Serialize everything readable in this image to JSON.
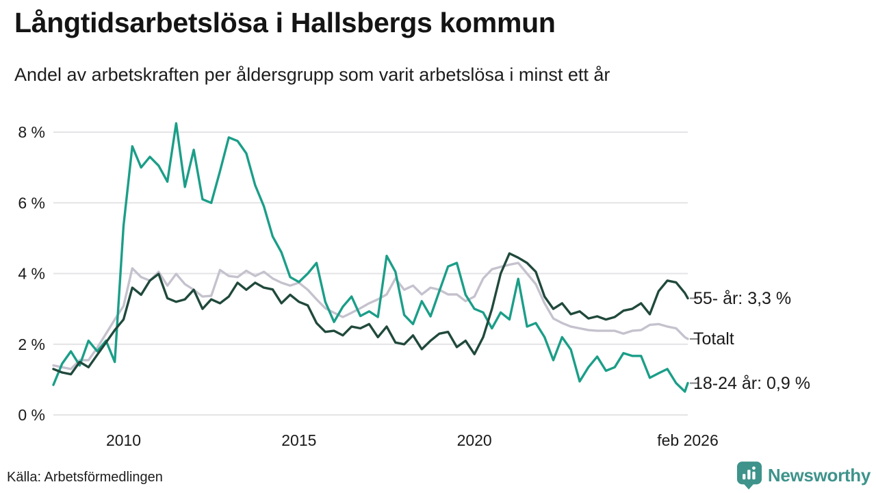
{
  "header": {
    "title": "Långtidsarbetslösa i Hallsbergs kommun",
    "subtitle": "Andel av arbetskraften per åldersgrupp som varit arbetslösa i minst ett år"
  },
  "footer": {
    "source": "Källa: Arbetsförmedlingen",
    "brand": "Newsworthy"
  },
  "colors": {
    "grid": "#e4e4e6",
    "tick_text": "#1a1a1a",
    "label_dash": "#8a8a8a",
    "logo_teal": "#3e938b"
  },
  "chart_data": {
    "type": "line",
    "title": "Långtidsarbetslösa i Hallsbergs kommun",
    "subtitle": "Andel av arbetskraften per åldersgrupp som varit arbetslösa i minst ett år",
    "source": "Källa: Arbetsförmedlingen",
    "grid": "horizontal",
    "xlim": [
      2008,
      2026.083
    ],
    "ylim": [
      0,
      8.6
    ],
    "x": {
      "start": 2008,
      "step": 0.25,
      "end": 2026.083,
      "unit": "year"
    },
    "x_ticks": [
      {
        "value": 2010,
        "label": "2010"
      },
      {
        "value": 2015,
        "label": "2015"
      },
      {
        "value": 2020,
        "label": "2020"
      },
      {
        "value": 2026.083,
        "label": "feb 2026"
      }
    ],
    "y_ticks": [
      {
        "value": 0,
        "label": "0 %"
      },
      {
        "value": 2,
        "label": "2 %"
      },
      {
        "value": 4,
        "label": "4 %"
      },
      {
        "value": 6,
        "label": "6 %"
      },
      {
        "value": 8,
        "label": "8 %"
      }
    ],
    "legend_position": "right-of-line-ends",
    "series": [
      {
        "name": "Totalt",
        "end_label": "Totalt",
        "color": "#c5c2ce",
        "values": [
          1.4,
          1.35,
          1.3,
          1.55,
          1.55,
          1.9,
          2.3,
          2.7,
          3.08,
          4.15,
          3.9,
          3.8,
          4.05,
          3.66,
          3.99,
          3.7,
          3.54,
          3.35,
          3.37,
          4.1,
          3.93,
          3.9,
          4.08,
          3.93,
          4.05,
          3.86,
          3.74,
          3.66,
          3.74,
          3.54,
          3.27,
          3.02,
          2.89,
          2.77,
          2.89,
          3.02,
          3.16,
          3.27,
          3.41,
          3.86,
          3.54,
          3.66,
          3.41,
          3.6,
          3.54,
          3.41,
          3.41,
          3.22,
          3.35,
          3.86,
          4.12,
          4.19,
          4.25,
          4.3,
          4.0,
          3.7,
          3.16,
          2.73,
          2.6,
          2.5,
          2.45,
          2.4,
          2.38,
          2.38,
          2.38,
          2.3,
          2.38,
          2.4,
          2.55,
          2.57,
          2.5,
          2.45,
          2.2,
          2.15
        ]
      },
      {
        "name": "18-24 år",
        "end_label": "18-24 år: 0,9 %",
        "end_value_text": "0,9 %",
        "color": "#1b9e88",
        "values": [
          0.85,
          1.45,
          1.8,
          1.4,
          2.1,
          1.8,
          2.1,
          1.5,
          5.35,
          7.6,
          7.0,
          7.3,
          7.05,
          6.6,
          8.25,
          6.45,
          7.5,
          6.1,
          6.0,
          6.9,
          7.85,
          7.75,
          7.4,
          6.5,
          5.9,
          5.05,
          4.6,
          3.9,
          3.76,
          4.0,
          4.3,
          3.2,
          2.63,
          3.06,
          3.35,
          2.8,
          2.93,
          2.77,
          4.5,
          4.05,
          2.83,
          2.57,
          3.22,
          2.79,
          3.5,
          4.2,
          4.3,
          3.4,
          3.0,
          2.9,
          2.45,
          2.9,
          2.7,
          3.85,
          2.5,
          2.6,
          2.2,
          1.55,
          2.2,
          1.85,
          0.95,
          1.35,
          1.65,
          1.25,
          1.35,
          1.75,
          1.67,
          1.67,
          1.05,
          1.18,
          1.3,
          0.9,
          0.66,
          0.9
        ]
      },
      {
        "name": "55- år",
        "end_label": "55- år: 3,3 %",
        "end_value_text": "3,3 %",
        "color": "#20493c",
        "values": [
          1.3,
          1.2,
          1.15,
          1.5,
          1.35,
          1.7,
          2.05,
          2.4,
          2.7,
          3.6,
          3.4,
          3.8,
          3.99,
          3.3,
          3.2,
          3.27,
          3.54,
          3.0,
          3.27,
          3.16,
          3.35,
          3.74,
          3.54,
          3.74,
          3.6,
          3.55,
          3.16,
          3.4,
          3.2,
          3.1,
          2.6,
          2.35,
          2.38,
          2.25,
          2.5,
          2.45,
          2.57,
          2.2,
          2.5,
          2.05,
          2.0,
          2.25,
          1.86,
          2.1,
          2.3,
          2.35,
          1.92,
          2.1,
          1.72,
          2.2,
          3.0,
          4.0,
          4.57,
          4.45,
          4.3,
          4.05,
          3.35,
          3.0,
          3.16,
          2.85,
          2.93,
          2.73,
          2.79,
          2.7,
          2.77,
          2.95,
          3.0,
          3.16,
          2.85,
          3.5,
          3.8,
          3.75,
          3.45,
          3.3
        ]
      }
    ]
  }
}
